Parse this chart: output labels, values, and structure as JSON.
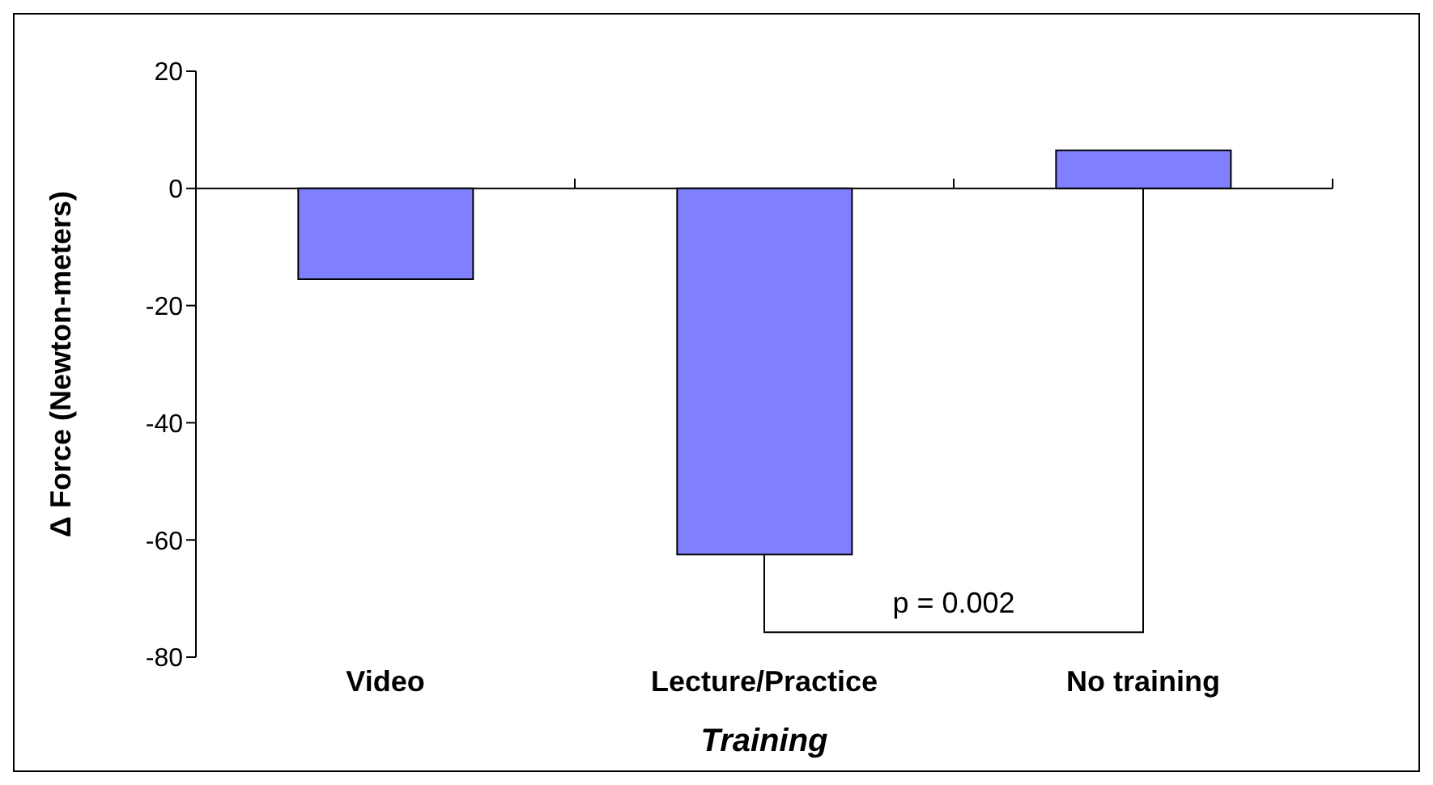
{
  "chart_data": {
    "type": "bar",
    "xlabel": "Training",
    "ylabel": "Δ Force (Newton-meters)",
    "categories": [
      "Video",
      "Lecture/Practice",
      "No training"
    ],
    "values": [
      -15.5,
      -62.5,
      6.5
    ],
    "color": "#8080ff",
    "ylim": [
      -80,
      20
    ],
    "yticks": [
      -80,
      -60,
      -40,
      -20,
      0,
      20
    ],
    "legend": false,
    "annotations": [
      "p = 0.002"
    ]
  }
}
